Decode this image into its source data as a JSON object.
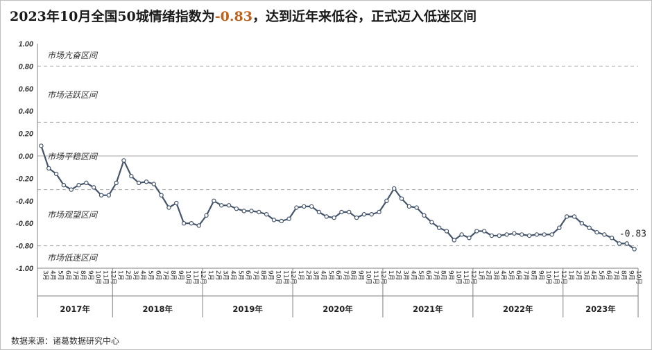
{
  "title": {
    "prefix": "2023年10月全国50城情绪指数为",
    "highlight": "-0.83",
    "suffix": "，达到近年来低谷，正式迈入低迷区间"
  },
  "source": "数据来源：诸葛数据研究中心",
  "colors": {
    "line": "#44546a",
    "marker_fill": "#ffffff",
    "highlight": "#c0621b",
    "grid": "#a6a6a6"
  },
  "chart_data": {
    "type": "line",
    "ylim": [
      -1.0,
      1.0
    ],
    "yticks": [
      "1.00",
      "0.80",
      "0.60",
      "0.40",
      "0.20",
      "0.00",
      "-0.20",
      "-0.40",
      "-0.60",
      "-0.80",
      "-1.00"
    ],
    "dashed_thresholds": [
      0.8,
      0.3,
      -0.3,
      -0.8
    ],
    "zones": [
      {
        "label": "市场亢奋区间",
        "value": 0.9
      },
      {
        "label": "市场活跃区间",
        "value": 0.55
      },
      {
        "label": "市场平稳区间",
        "value": 0.0
      },
      {
        "label": "市场观望区间",
        "value": -0.52
      },
      {
        "label": "市场低迷区间",
        "value": -0.9
      }
    ],
    "annotations": [
      {
        "text": "-0.83",
        "x": "2023年10月",
        "y": -0.83
      }
    ],
    "years": [
      {
        "label": "2017年",
        "months": [
          "3月",
          "4月",
          "5月",
          "6月",
          "7月",
          "8月",
          "9月",
          "10月",
          "11月",
          "12月"
        ]
      },
      {
        "label": "2018年",
        "months": [
          "1月",
          "2月",
          "3月",
          "4月",
          "5月",
          "6月",
          "7月",
          "8月",
          "9月",
          "10月",
          "11月",
          "12月"
        ]
      },
      {
        "label": "2019年",
        "months": [
          "1月",
          "2月",
          "3月",
          "4月",
          "5月",
          "6月",
          "7月",
          "8月",
          "9月",
          "10月",
          "11月",
          "12月"
        ]
      },
      {
        "label": "2020年",
        "months": [
          "1月",
          "2月",
          "3月",
          "4月",
          "5月",
          "6月",
          "7月",
          "8月",
          "9月",
          "10月",
          "11月",
          "12月"
        ]
      },
      {
        "label": "2021年",
        "months": [
          "1月",
          "2月",
          "3月",
          "4月",
          "5月",
          "6月",
          "7月",
          "8月",
          "9月",
          "10月",
          "11月",
          "12月"
        ]
      },
      {
        "label": "2022年",
        "months": [
          "1月",
          "2月",
          "3月",
          "4月",
          "5月",
          "6月",
          "7月",
          "8月",
          "9月",
          "10月",
          "11月",
          "12月"
        ]
      },
      {
        "label": "2023年",
        "months": [
          "1月",
          "2月",
          "3月",
          "4月",
          "5月",
          "6月",
          "7月",
          "8月",
          "9月",
          "10月"
        ]
      }
    ],
    "series": [
      {
        "values": [
          0.09,
          -0.11,
          -0.16,
          -0.26,
          -0.3,
          -0.26,
          -0.24,
          -0.28,
          -0.35,
          -0.35,
          -0.24,
          -0.04,
          -0.18,
          -0.24,
          -0.23,
          -0.25,
          -0.35,
          -0.46,
          -0.42,
          -0.6,
          -0.6,
          -0.62,
          -0.53,
          -0.4,
          -0.44,
          -0.44,
          -0.47,
          -0.49,
          -0.49,
          -0.5,
          -0.52,
          -0.57,
          -0.58,
          -0.56,
          -0.46,
          -0.45,
          -0.45,
          -0.5,
          -0.54,
          -0.55,
          -0.5,
          -0.5,
          -0.55,
          -0.52,
          -0.52,
          -0.5,
          -0.4,
          -0.29,
          -0.38,
          -0.45,
          -0.46,
          -0.53,
          -0.59,
          -0.64,
          -0.67,
          -0.75,
          -0.7,
          -0.73,
          -0.67,
          -0.67,
          -0.71,
          -0.71,
          -0.7,
          -0.69,
          -0.7,
          -0.71,
          -0.7,
          -0.7,
          -0.7,
          -0.64,
          -0.54,
          -0.54,
          -0.6,
          -0.64,
          -0.68,
          -0.7,
          -0.73,
          -0.78,
          -0.78,
          -0.83
        ]
      }
    ]
  }
}
